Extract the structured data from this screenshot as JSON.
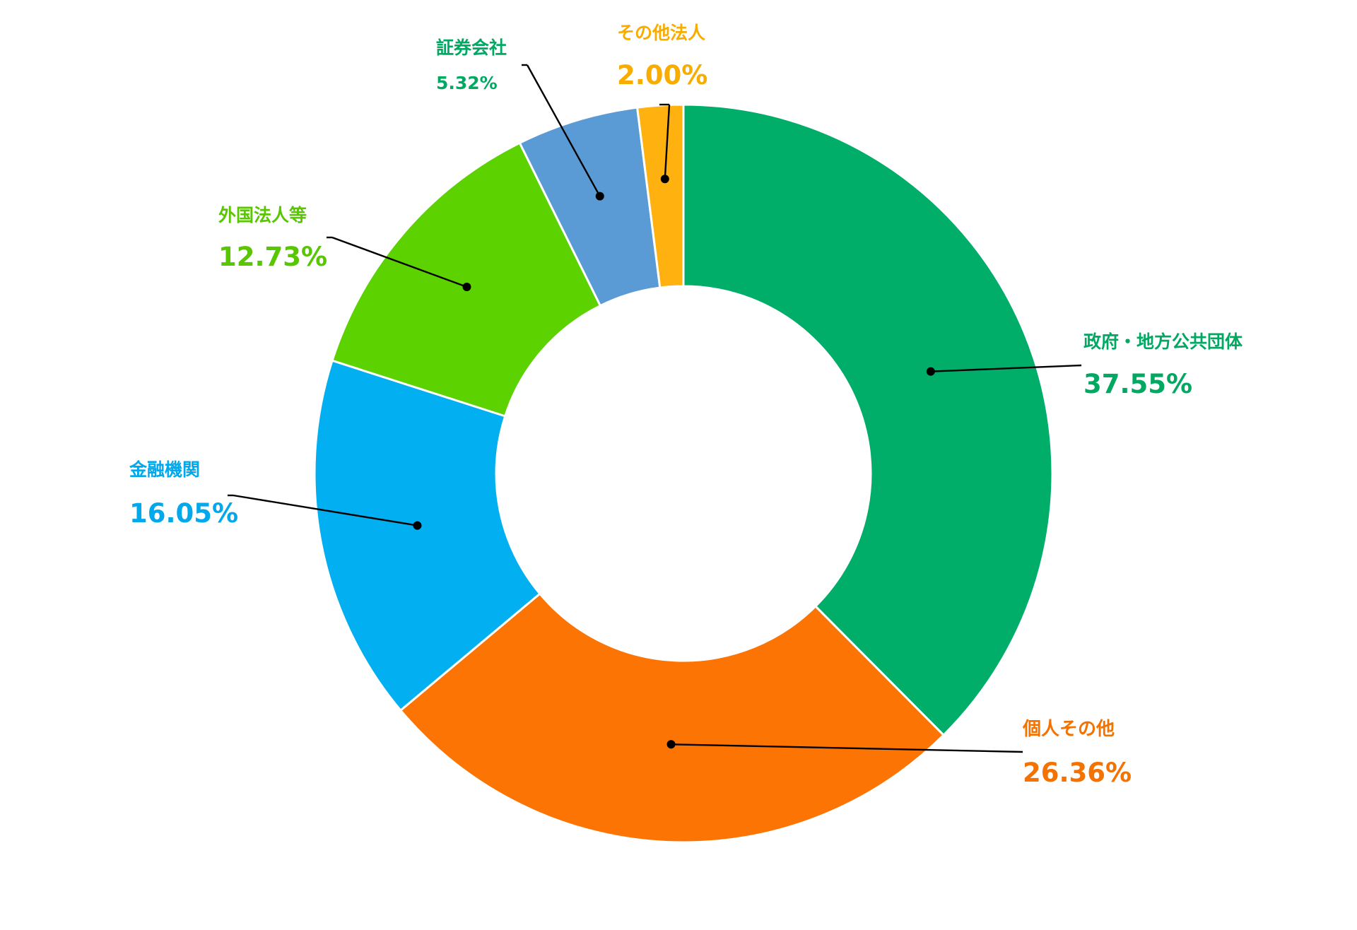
{
  "chart_data": {
    "type": "pie",
    "variant": "donut",
    "legend": "none",
    "slices": [
      {
        "label": "政府・地方公共団体",
        "value": 37.55,
        "value_label": "37.55%",
        "color": "#00ad69"
      },
      {
        "label": "個人その他",
        "value": 26.36,
        "value_label": "26.36%",
        "color": "#fb7404"
      },
      {
        "label": "金融機関",
        "value": 16.05,
        "value_label": "16.05%",
        "color": "#02aff0"
      },
      {
        "label": "外国法人等",
        "value": 12.73,
        "value_label": "12.73%",
        "color": "#5cd201"
      },
      {
        "label": "証券会社",
        "value": 5.32,
        "value_label": "5.32%",
        "color": "#5b9bd5"
      },
      {
        "label": "その他法人",
        "value": 2.0,
        "value_label": "2.00%",
        "color": "#ffb10f"
      }
    ]
  },
  "colors": {
    "background": "#ffffff",
    "leader_line": "#000000",
    "slice_border": "#ffffff",
    "label_colors": [
      "#00a862",
      "#f47200",
      "#01a9ec",
      "#58c600",
      "#00a862",
      "#f9ac00"
    ]
  }
}
